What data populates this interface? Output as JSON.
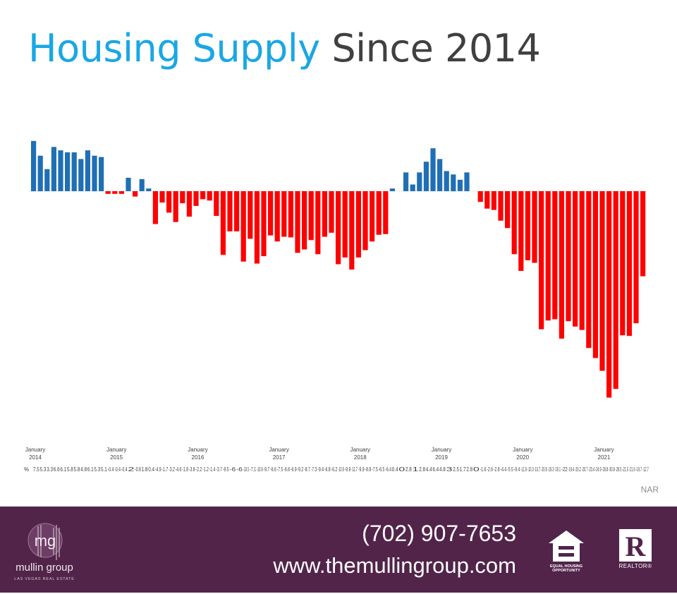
{
  "title": {
    "highlight": "Housing Supply",
    "rest": "Since 2014"
  },
  "source": "NAR",
  "footer": {
    "phone": "(702) 907-7653",
    "website": "www.themullingroup.com",
    "logo_initials": "mg",
    "logo_name": "mullin group",
    "logo_tagline": "LAS VEGAS REAL ESTATE",
    "eho_label": "EQUAL HOUSING OPPORTUNITY",
    "realtor_label": "REALTOR®"
  },
  "colors": {
    "positive": "#1f6fb5",
    "negative": "#ff0000",
    "title_accent": "#1aa7e4",
    "footer_bg": "#52244a"
  },
  "chart_data": {
    "type": "bar",
    "title": "Housing Supply Since 2014",
    "source": "NAR",
    "x_tick_labels": [
      {
        "index": 0,
        "line1": "January",
        "line2": "2014"
      },
      {
        "index": 12,
        "line1": "January",
        "line2": "2015"
      },
      {
        "index": 24,
        "line1": "January",
        "line2": "2016"
      },
      {
        "index": 36,
        "line1": "January",
        "line2": "2017"
      },
      {
        "index": 48,
        "line1": "January",
        "line2": "2018"
      },
      {
        "index": 60,
        "line1": "January",
        "line2": "2019"
      },
      {
        "index": 72,
        "line1": "January",
        "line2": "2020"
      },
      {
        "index": 84,
        "line1": "January",
        "line2": "2021"
      }
    ],
    "label_row_prefix": "%",
    "values": [
      7.5,
      5.3,
      3.3,
      6.6,
      6.1,
      5.8,
      5.8,
      4.8,
      6.1,
      5.3,
      5.1,
      -0.4,
      -0.4,
      -0.4,
      2.0,
      -0.8,
      1.8,
      0.4,
      -4.9,
      -1.7,
      -3.2,
      -4.6,
      -1.8,
      -3.8,
      -2.2,
      -1.2,
      -1.4,
      -3.7,
      -9.5,
      -6.0,
      -6.0,
      -10.5,
      -7.1,
      -10.8,
      -9.7,
      -6.6,
      -7.5,
      -6.8,
      -6.9,
      -9.2,
      -8.7,
      -7.3,
      -9.4,
      -6.8,
      -6.2,
      -10.9,
      -9.9,
      -11.7,
      -9.9,
      -8.8,
      -7.5,
      -6.5,
      -6.4,
      0.4,
      0.0,
      2.8,
      1.0,
      2.8,
      4.4,
      6.4,
      4.8,
      3.0,
      2.5,
      1.7,
      2.8,
      0.0,
      -1.6,
      -2.6,
      -2.8,
      -4.4,
      -5.5,
      -9.4,
      -11.9,
      -10.3,
      -10.7,
      -20.6,
      -19.3,
      -19.1,
      -22.0,
      -19.4,
      -20.2,
      -20.7,
      -23.4,
      -24.9,
      -26.8,
      -30.8,
      -29.5,
      -21.5,
      -21.6,
      -19.7,
      -12.7
    ],
    "ylim": [
      -31,
      8
    ],
    "grid": false,
    "legend": "none"
  }
}
